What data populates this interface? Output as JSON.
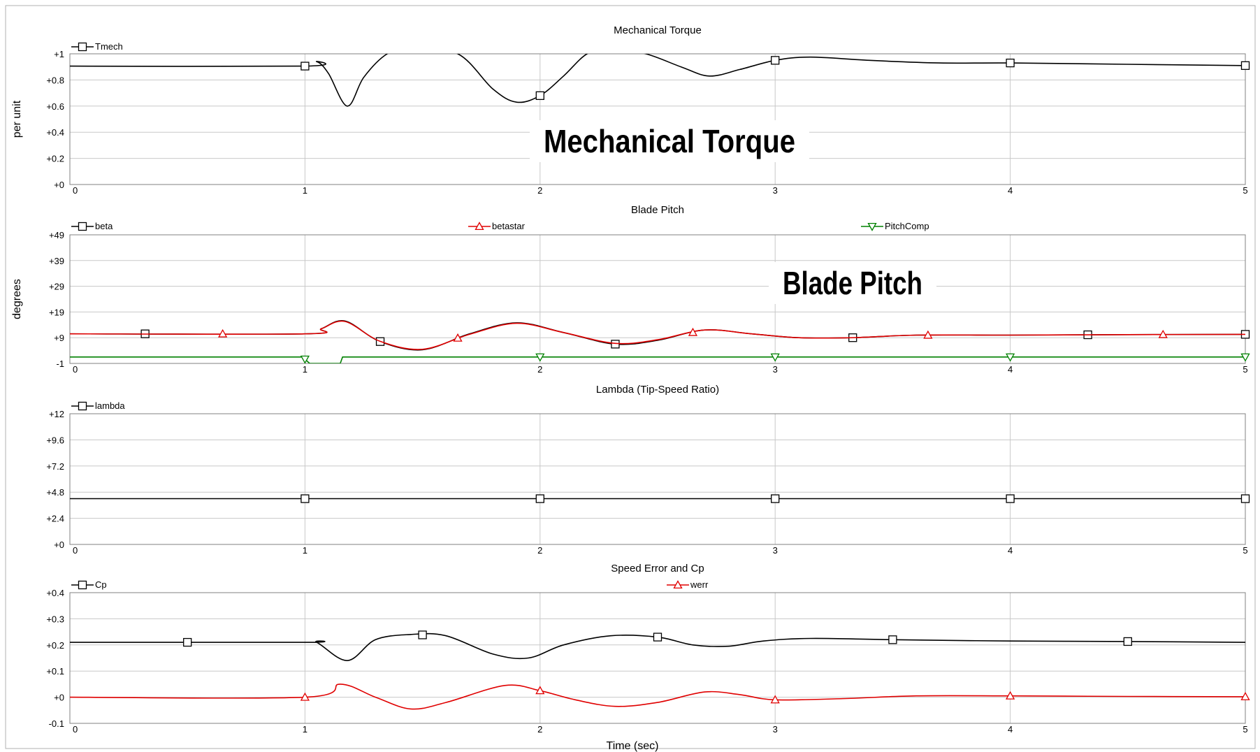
{
  "colors": {
    "black": "#000000",
    "red": "#e00000",
    "green": "#008000",
    "grid": "#c8c8c8"
  },
  "chart_data": [
    {
      "type": "line",
      "title": "Mechanical Torque",
      "ylabel": "per unit",
      "xlabel": "",
      "overlay_label": "Mechanical Torque",
      "xlim": [
        0,
        5
      ],
      "ylim": [
        0,
        1
      ],
      "xticks": [
        0,
        1,
        2,
        3,
        4,
        5
      ],
      "yticks": [
        0,
        0.2,
        0.4,
        0.6,
        0.8,
        1
      ],
      "yticklabels": [
        "+0",
        "+0.2",
        "+0.4",
        "+0.6",
        "+0.8",
        "+1"
      ],
      "series": [
        {
          "name": "Tmech",
          "color": "#000000",
          "marker": "square",
          "x": [
            0,
            1,
            1.05,
            1.1,
            1.18,
            1.25,
            1.35,
            1.45,
            1.65,
            1.8,
            1.9,
            2,
            2.1,
            2.2,
            2.3,
            2.45,
            2.6,
            2.72,
            2.85,
            3,
            3.15,
            3.4,
            3.7,
            4,
            4.5,
            5
          ],
          "y": [
            0.906,
            0.906,
            0.94,
            0.85,
            0.6,
            0.82,
            1.0,
            1.04,
            1.0,
            0.73,
            0.63,
            0.68,
            0.83,
            1.0,
            1.04,
            1.0,
            0.9,
            0.83,
            0.88,
            0.95,
            0.975,
            0.95,
            0.93,
            0.93,
            0.92,
            0.91
          ],
          "markers_x": [
            1,
            2,
            3,
            4,
            5
          ]
        }
      ]
    },
    {
      "type": "line",
      "title": "Blade Pitch",
      "ylabel": "degrees",
      "xlabel": "",
      "overlay_label": "Blade Pitch",
      "xlim": [
        0,
        5
      ],
      "ylim": [
        -1,
        49
      ],
      "xticks": [
        0,
        1,
        2,
        3,
        4,
        5
      ],
      "yticks": [
        -1,
        9,
        19,
        29,
        39,
        49
      ],
      "yticklabels": [
        "-1",
        "+9",
        "+19",
        "+29",
        "+39",
        "+49"
      ],
      "series": [
        {
          "name": "beta",
          "color": "#000000",
          "marker": "square",
          "x": [
            0,
            1,
            1.07,
            1.17,
            1.32,
            1.5,
            1.7,
            1.9,
            2.1,
            2.32,
            2.5,
            2.7,
            2.9,
            3.1,
            3.33,
            3.6,
            4,
            4.5,
            5
          ],
          "y": [
            10.5,
            10.5,
            12.5,
            15.5,
            7.5,
            4.3,
            10.5,
            14.8,
            11,
            6.5,
            8,
            12,
            10.5,
            9,
            9,
            10,
            10,
            10.2,
            10.3
          ],
          "markers_x": [
            0.32,
            1.32,
            2.32,
            3.33,
            4.33,
            5
          ]
        },
        {
          "name": "betastar",
          "color": "#e00000",
          "marker": "triangle-up",
          "x": [
            0,
            1,
            1.07,
            1.17,
            1.32,
            1.5,
            1.7,
            1.9,
            2.1,
            2.32,
            2.5,
            2.7,
            2.9,
            3.1,
            3.33,
            3.6,
            4,
            4.5,
            5
          ],
          "y": [
            10.5,
            10.5,
            12.5,
            15.3,
            7.6,
            4.5,
            10.3,
            14.6,
            11,
            6.8,
            8.2,
            12,
            10.5,
            9,
            9,
            10,
            10,
            10.2,
            10.3
          ],
          "markers_x": [
            0.65,
            1.65,
            2.65,
            3.65,
            4.65
          ]
        },
        {
          "name": "PitchComp",
          "color": "#008000",
          "marker": "triangle-down",
          "x": [
            0,
            0.99,
            1.02,
            1.15,
            1.16,
            5
          ],
          "y": [
            1.5,
            1.5,
            -1,
            -1,
            1.5,
            1.5
          ],
          "markers_x": [
            1,
            2,
            3,
            4,
            5
          ]
        }
      ]
    },
    {
      "type": "line",
      "title": "Lambda (Tip-Speed Ratio)",
      "ylabel": "",
      "xlabel": "",
      "xlim": [
        0,
        5
      ],
      "ylim": [
        0,
        12
      ],
      "xticks": [
        0,
        1,
        2,
        3,
        4,
        5
      ],
      "yticks": [
        0,
        2.4,
        4.8,
        7.2,
        9.6,
        12
      ],
      "yticklabels": [
        "+0",
        "+2.4",
        "+4.8",
        "+7.2",
        "+9.6",
        "+12"
      ],
      "series": [
        {
          "name": "lambda",
          "color": "#000000",
          "marker": "square",
          "x": [
            0,
            5
          ],
          "y": [
            4.2,
            4.2
          ],
          "markers_x": [
            1,
            2,
            3,
            4,
            5
          ]
        }
      ]
    },
    {
      "type": "line",
      "title": "Speed Error and Cp",
      "ylabel": "",
      "xlabel": "Time (sec)",
      "xlim": [
        0,
        5
      ],
      "ylim": [
        -0.1,
        0.4
      ],
      "xticks": [
        0,
        1,
        2,
        3,
        4,
        5
      ],
      "yticks": [
        -0.1,
        0,
        0.1,
        0.2,
        0.3,
        0.4
      ],
      "yticklabels": [
        "-0.1",
        "+0",
        "+0.1",
        "+0.2",
        "+0.3",
        "+0.4"
      ],
      "series": [
        {
          "name": "Cp",
          "color": "#000000",
          "marker": "square",
          "x": [
            0,
            1,
            1.05,
            1.18,
            1.3,
            1.45,
            1.6,
            1.8,
            1.95,
            2.1,
            2.3,
            2.5,
            2.65,
            2.8,
            2.95,
            3.15,
            3.5,
            4,
            4.5,
            5
          ],
          "y": [
            0.21,
            0.21,
            0.21,
            0.14,
            0.22,
            0.24,
            0.235,
            0.165,
            0.15,
            0.2,
            0.235,
            0.23,
            0.2,
            0.195,
            0.215,
            0.225,
            0.22,
            0.215,
            0.213,
            0.21
          ],
          "markers_x": [
            0.5,
            1.5,
            2.5,
            3.5,
            4.5
          ]
        },
        {
          "name": "werr",
          "color": "#e00000",
          "marker": "triangle-up",
          "x": [
            0,
            1,
            1.15,
            1.3,
            1.45,
            1.6,
            1.85,
            2,
            2.15,
            2.32,
            2.5,
            2.7,
            2.85,
            3,
            3.3,
            3.6,
            4,
            4.5,
            5
          ],
          "y": [
            0,
            0,
            0.05,
            0.0,
            -0.045,
            -0.02,
            0.045,
            0.025,
            -0.01,
            -0.035,
            -0.02,
            0.02,
            0.01,
            -0.01,
            -0.005,
            0.005,
            0.005,
            0.003,
            0.002
          ],
          "markers_x": [
            1,
            2,
            3,
            4,
            5
          ]
        }
      ]
    }
  ]
}
